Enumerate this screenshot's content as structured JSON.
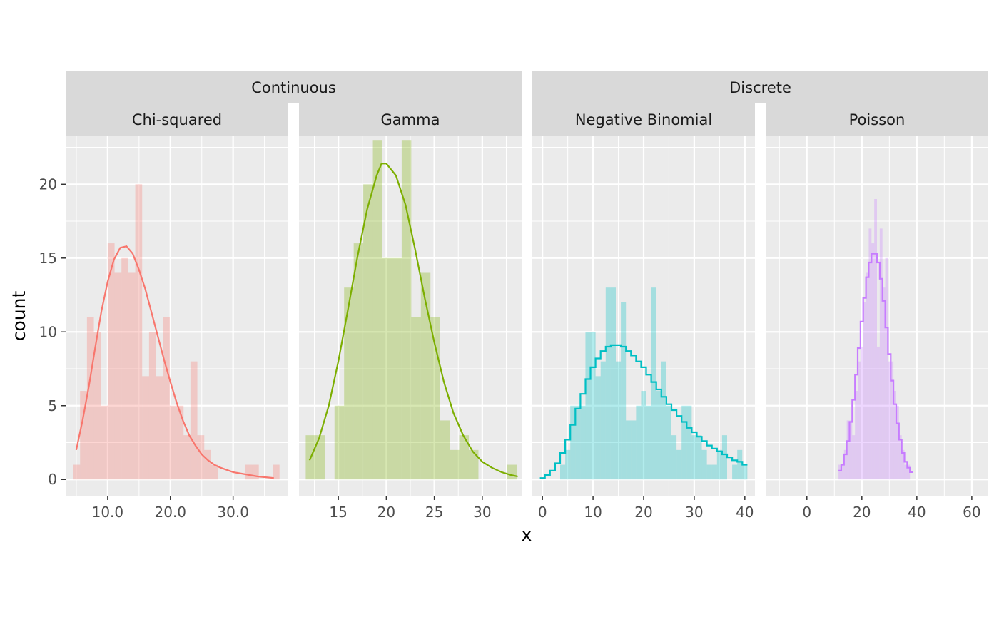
{
  "chart_data": {
    "type": "histogram",
    "xlabel": "x",
    "ylabel": "count",
    "ylim": [
      -1.1,
      23.3
    ],
    "y_ticks": [
      0,
      5,
      10,
      15,
      20
    ],
    "groups": [
      {
        "label": "Continuous",
        "panels": [
          "Chi-squared",
          "Gamma"
        ]
      },
      {
        "label": "Discrete",
        "panels": [
          "Negative Binomial",
          "Poisson"
        ]
      }
    ],
    "panels": [
      {
        "name": "Chi-squared",
        "color": "#F8766D",
        "xlim": [
          3.3,
          38.8
        ],
        "x_ticks": [
          10,
          20,
          30
        ],
        "x_tick_labels": [
          "10.0",
          "20.0",
          "30.0"
        ],
        "bin_width": 1.1,
        "bars": [
          {
            "x0": 4.5,
            "y": 1
          },
          {
            "x0": 5.6,
            "y": 6
          },
          {
            "x0": 6.7,
            "y": 11
          },
          {
            "x0": 7.8,
            "y": 10
          },
          {
            "x0": 8.9,
            "y": 5
          },
          {
            "x0": 10.0,
            "y": 16
          },
          {
            "x0": 11.1,
            "y": 14
          },
          {
            "x0": 12.2,
            "y": 15
          },
          {
            "x0": 13.3,
            "y": 14
          },
          {
            "x0": 14.4,
            "y": 20
          },
          {
            "x0": 15.5,
            "y": 7
          },
          {
            "x0": 16.6,
            "y": 10
          },
          {
            "x0": 17.7,
            "y": 7
          },
          {
            "x0": 18.8,
            "y": 11
          },
          {
            "x0": 19.9,
            "y": 5
          },
          {
            "x0": 21.0,
            "y": 5
          },
          {
            "x0": 22.1,
            "y": 3
          },
          {
            "x0": 23.2,
            "y": 8
          },
          {
            "x0": 24.3,
            "y": 3
          },
          {
            "x0": 25.4,
            "y": 2
          },
          {
            "x0": 26.5,
            "y": 1
          },
          {
            "x0": 31.9,
            "y": 1
          },
          {
            "x0": 33.0,
            "y": 1
          },
          {
            "x0": 36.3,
            "y": 1
          }
        ],
        "curve_type": "density",
        "curve": [
          [
            5.0,
            2.0
          ],
          [
            6.0,
            4.0
          ],
          [
            7.0,
            6.3
          ],
          [
            8.0,
            8.9
          ],
          [
            9.0,
            11.4
          ],
          [
            10.0,
            13.4
          ],
          [
            11.0,
            14.9
          ],
          [
            12.0,
            15.7
          ],
          [
            13.0,
            15.8
          ],
          [
            14.0,
            15.3
          ],
          [
            15.0,
            14.2
          ],
          [
            16.0,
            12.9
          ],
          [
            17.0,
            11.3
          ],
          [
            18.0,
            9.7
          ],
          [
            19.0,
            8.1
          ],
          [
            20.0,
            6.6
          ],
          [
            21.0,
            5.2
          ],
          [
            22.0,
            4.0
          ],
          [
            23.0,
            3.0
          ],
          [
            24.0,
            2.3
          ],
          [
            25.0,
            1.7
          ],
          [
            26.0,
            1.3
          ],
          [
            27.0,
            1.0
          ],
          [
            28.0,
            0.8
          ],
          [
            30.0,
            0.5
          ],
          [
            32.0,
            0.35
          ],
          [
            34.0,
            0.2
          ],
          [
            36.5,
            0.1
          ]
        ]
      },
      {
        "name": "Gamma",
        "color": "#7CAE00",
        "xlim": [
          10.9,
          34.1
        ],
        "x_ticks": [
          15,
          20,
          25,
          30
        ],
        "x_tick_labels": [
          "15",
          "20",
          "25",
          "30"
        ],
        "bin_width": 1.0,
        "bars": [
          {
            "x0": 11.6,
            "y": 3
          },
          {
            "x0": 12.6,
            "y": 3
          },
          {
            "x0": 14.6,
            "y": 5
          },
          {
            "x0": 15.6,
            "y": 13
          },
          {
            "x0": 16.6,
            "y": 16
          },
          {
            "x0": 17.6,
            "y": 20
          },
          {
            "x0": 18.6,
            "y": 23
          },
          {
            "x0": 19.6,
            "y": 15
          },
          {
            "x0": 20.6,
            "y": 15
          },
          {
            "x0": 21.6,
            "y": 23
          },
          {
            "x0": 22.6,
            "y": 11
          },
          {
            "x0": 23.6,
            "y": 14
          },
          {
            "x0": 24.6,
            "y": 11
          },
          {
            "x0": 25.6,
            "y": 4
          },
          {
            "x0": 26.6,
            "y": 2
          },
          {
            "x0": 27.6,
            "y": 3
          },
          {
            "x0": 28.6,
            "y": 2
          },
          {
            "x0": 32.6,
            "y": 1
          }
        ],
        "curve_type": "density",
        "curve": [
          [
            12.0,
            1.3
          ],
          [
            13.0,
            2.8
          ],
          [
            14.0,
            5.0
          ],
          [
            15.0,
            8.0
          ],
          [
            16.0,
            11.5
          ],
          [
            17.0,
            15.1
          ],
          [
            18.0,
            18.3
          ],
          [
            19.0,
            20.6
          ],
          [
            19.5,
            21.4
          ],
          [
            20.0,
            21.4
          ],
          [
            21.0,
            20.6
          ],
          [
            22.0,
            18.6
          ],
          [
            23.0,
            15.6
          ],
          [
            24.0,
            12.3
          ],
          [
            25.0,
            9.3
          ],
          [
            26.0,
            6.6
          ],
          [
            27.0,
            4.5
          ],
          [
            28.0,
            3.0
          ],
          [
            29.0,
            1.9
          ],
          [
            30.0,
            1.2
          ],
          [
            31.0,
            0.8
          ],
          [
            32.0,
            0.5
          ],
          [
            33.0,
            0.3
          ],
          [
            33.7,
            0.2
          ]
        ]
      },
      {
        "name": "Negative Binomial",
        "color": "#00BFC4",
        "xlim": [
          -2.0,
          42.0
        ],
        "x_ticks": [
          0,
          10,
          20,
          30,
          40
        ],
        "x_tick_labels": [
          "0",
          "10",
          "20",
          "30",
          "40"
        ],
        "bin_width": 1.0,
        "bars": [
          {
            "x0": 3.5,
            "y": 1
          },
          {
            "x0": 4.5,
            "y": 2
          },
          {
            "x0": 5.5,
            "y": 5
          },
          {
            "x0": 6.5,
            "y": 5
          },
          {
            "x0": 7.5,
            "y": 5
          },
          {
            "x0": 8.5,
            "y": 10
          },
          {
            "x0": 9.5,
            "y": 10
          },
          {
            "x0": 10.5,
            "y": 7
          },
          {
            "x0": 11.5,
            "y": 8
          },
          {
            "x0": 12.5,
            "y": 13
          },
          {
            "x0": 13.5,
            "y": 13
          },
          {
            "x0": 14.5,
            "y": 8
          },
          {
            "x0": 15.5,
            "y": 12
          },
          {
            "x0": 16.5,
            "y": 4
          },
          {
            "x0": 17.5,
            "y": 4
          },
          {
            "x0": 18.5,
            "y": 5
          },
          {
            "x0": 19.5,
            "y": 6
          },
          {
            "x0": 20.5,
            "y": 5
          },
          {
            "x0": 21.5,
            "y": 13
          },
          {
            "x0": 22.5,
            "y": 6
          },
          {
            "x0": 23.5,
            "y": 8
          },
          {
            "x0": 24.5,
            "y": 5
          },
          {
            "x0": 25.5,
            "y": 3
          },
          {
            "x0": 26.5,
            "y": 2
          },
          {
            "x0": 27.5,
            "y": 5
          },
          {
            "x0": 28.5,
            "y": 5
          },
          {
            "x0": 29.5,
            "y": 3
          },
          {
            "x0": 30.5,
            "y": 3
          },
          {
            "x0": 31.5,
            "y": 2
          },
          {
            "x0": 32.5,
            "y": 1
          },
          {
            "x0": 33.5,
            "y": 1
          },
          {
            "x0": 34.5,
            "y": 2
          },
          {
            "x0": 35.5,
            "y": 3
          },
          {
            "x0": 37.5,
            "y": 1
          },
          {
            "x0": 38.5,
            "y": 2
          },
          {
            "x0": 39.5,
            "y": 1
          }
        ],
        "curve_type": "step",
        "curve": [
          [
            0,
            0.1
          ],
          [
            1,
            0.3
          ],
          [
            2,
            0.6
          ],
          [
            3,
            1.1
          ],
          [
            4,
            1.8
          ],
          [
            5,
            2.7
          ],
          [
            6,
            3.7
          ],
          [
            7,
            4.8
          ],
          [
            8,
            5.8
          ],
          [
            9,
            6.8
          ],
          [
            10,
            7.6
          ],
          [
            11,
            8.2
          ],
          [
            12,
            8.7
          ],
          [
            13,
            9.0
          ],
          [
            14,
            9.1
          ],
          [
            15,
            9.1
          ],
          [
            16,
            9.0
          ],
          [
            17,
            8.7
          ],
          [
            18,
            8.4
          ],
          [
            19,
            8.0
          ],
          [
            20,
            7.6
          ],
          [
            21,
            7.1
          ],
          [
            22,
            6.6
          ],
          [
            23,
            6.1
          ],
          [
            24,
            5.6
          ],
          [
            25,
            5.1
          ],
          [
            26,
            4.7
          ],
          [
            27,
            4.3
          ],
          [
            28,
            3.9
          ],
          [
            29,
            3.5
          ],
          [
            30,
            3.2
          ],
          [
            31,
            2.9
          ],
          [
            32,
            2.6
          ],
          [
            33,
            2.3
          ],
          [
            34,
            2.1
          ],
          [
            35,
            1.9
          ],
          [
            36,
            1.7
          ],
          [
            37,
            1.5
          ],
          [
            38,
            1.3
          ],
          [
            39,
            1.2
          ],
          [
            40,
            1.0
          ]
        ]
      },
      {
        "name": "Poisson",
        "color": "#C77CFF",
        "xlim": [
          -15.0,
          66.0
        ],
        "x_ticks": [
          0,
          20,
          40,
          60
        ],
        "x_tick_labels": [
          "0",
          "20",
          "40",
          "60"
        ],
        "bin_width": 1.0,
        "bars": [
          {
            "x0": 11.5,
            "y": 1
          },
          {
            "x0": 12.5,
            "y": 1
          },
          {
            "x0": 13.5,
            "y": 2
          },
          {
            "x0": 14.5,
            "y": 4
          },
          {
            "x0": 15.5,
            "y": 4
          },
          {
            "x0": 16.5,
            "y": 3
          },
          {
            "x0": 17.5,
            "y": 6
          },
          {
            "x0": 18.5,
            "y": 8
          },
          {
            "x0": 19.5,
            "y": 9
          },
          {
            "x0": 20.5,
            "y": 12
          },
          {
            "x0": 21.5,
            "y": 14
          },
          {
            "x0": 22.5,
            "y": 17
          },
          {
            "x0": 23.5,
            "y": 16
          },
          {
            "x0": 24.5,
            "y": 19
          },
          {
            "x0": 25.5,
            "y": 9
          },
          {
            "x0": 26.5,
            "y": 17
          },
          {
            "x0": 27.5,
            "y": 13
          },
          {
            "x0": 28.5,
            "y": 15
          },
          {
            "x0": 29.5,
            "y": 8
          },
          {
            "x0": 30.5,
            "y": 8
          },
          {
            "x0": 31.5,
            "y": 6
          },
          {
            "x0": 32.5,
            "y": 5
          },
          {
            "x0": 33.5,
            "y": 3
          },
          {
            "x0": 34.5,
            "y": 2
          },
          {
            "x0": 35.5,
            "y": 1
          },
          {
            "x0": 36.5,
            "y": 1
          }
        ],
        "curve_type": "step",
        "curve": [
          [
            12,
            0.6
          ],
          [
            13,
            1.0
          ],
          [
            14,
            1.7
          ],
          [
            15,
            2.6
          ],
          [
            16,
            3.9
          ],
          [
            17,
            5.4
          ],
          [
            18,
            7.1
          ],
          [
            19,
            8.9
          ],
          [
            20,
            10.7
          ],
          [
            21,
            12.3
          ],
          [
            22,
            13.7
          ],
          [
            23,
            14.7
          ],
          [
            24,
            15.3
          ],
          [
            25,
            15.3
          ],
          [
            26,
            14.7
          ],
          [
            27,
            13.6
          ],
          [
            28,
            12.1
          ],
          [
            29,
            10.3
          ],
          [
            30,
            8.5
          ],
          [
            31,
            6.7
          ],
          [
            32,
            5.1
          ],
          [
            33,
            3.8
          ],
          [
            34,
            2.7
          ],
          [
            35,
            1.8
          ],
          [
            36,
            1.2
          ],
          [
            37,
            0.8
          ],
          [
            38,
            0.5
          ]
        ]
      }
    ]
  }
}
